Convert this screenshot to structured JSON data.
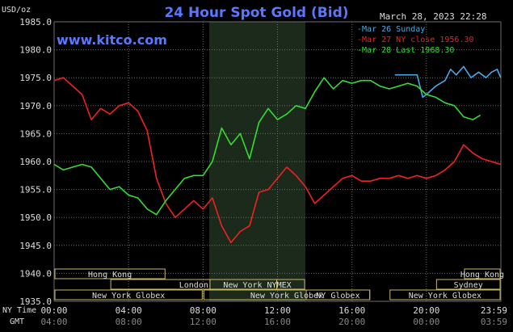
{
  "header": {
    "title": "24 Hour Spot Gold (Bid)",
    "site": "www.kitco.com",
    "unit": "USD/oz",
    "date": "March 28, 2023 22:28"
  },
  "colors": {
    "background": "#000000",
    "grid": "#6e6e6e",
    "shade": "#1c2a1c",
    "sunday": "#4aa8e8",
    "ny_close": "#ee2222",
    "last": "#33dd33",
    "title": "#5a78ff",
    "session_border": "#c8b860",
    "text": "#dddddd"
  },
  "legend": [
    {
      "label": "Mar 26 Sunday",
      "color": "#4aa8e8"
    },
    {
      "label": "Mar 27 NY close 1956.30",
      "color": "#ee2222"
    },
    {
      "label": "Mar 28 Last 1968.30",
      "color": "#33dd33"
    }
  ],
  "sessions": [
    {
      "label": "Hong Kong",
      "start": 0,
      "end": 6
    },
    {
      "label": "London",
      "start": 3,
      "end": 12
    },
    {
      "label": "New York NYMEX",
      "start": 8.33,
      "end": 13.5
    },
    {
      "label": "New York Globex",
      "start": 0,
      "end": 8
    },
    {
      "label": "New York Globex",
      "start": 8,
      "end": 17
    },
    {
      "label": "NY Globex",
      "start": 13.5,
      "end": 17
    },
    {
      "label": "Hong Kong",
      "start": 22,
      "end": 24
    },
    {
      "label": "Sydney",
      "start": 20.5,
      "end": 24
    },
    {
      "label": "New York Globex",
      "start": 18,
      "end": 24
    }
  ],
  "time_axis": {
    "ny_label": "NY Time",
    "gmt_label": "GMT",
    "ny_ticks": [
      "00:00",
      "04:00",
      "08:00",
      "12:00",
      "16:00",
      "20:00",
      "23:59"
    ],
    "gmt_ticks": [
      "04:00",
      "08:00",
      "12:00",
      "16:00",
      "20:00",
      "00:00",
      "03:59"
    ]
  },
  "chart_data": {
    "type": "line",
    "title": "24 Hour Spot Gold (Bid)",
    "ylabel": "USD/oz",
    "ylim": [
      1935.0,
      1985.0
    ],
    "yticks": [
      1935.0,
      1940.0,
      1945.0,
      1950.0,
      1955.0,
      1960.0,
      1965.0,
      1970.0,
      1975.0,
      1980.0,
      1985.0
    ],
    "ytick_labels": [
      "1935.0",
      "1940.0",
      "1945.0",
      "1950.0",
      "1955.0",
      "1960.0",
      "1965.0",
      "1970.0",
      "1975.0",
      "1980.0",
      "1985.0"
    ],
    "xlim": [
      0,
      24
    ],
    "grid": true,
    "shaded_hours": [
      8.33,
      13.5
    ],
    "legend_position": "top-right",
    "series": [
      {
        "name": "Mar 26 Sunday",
        "color": "#4aa8e8",
        "x": [
          18.3,
          19.0,
          19.5,
          19.8,
          20.0,
          20.5,
          21.0,
          21.3,
          21.6,
          22.0,
          22.4,
          22.8,
          23.2,
          23.5,
          23.8,
          23.99
        ],
        "y": [
          1975.5,
          1975.5,
          1975.5,
          1971.5,
          1972.0,
          1973.5,
          1974.5,
          1976.5,
          1975.5,
          1977.0,
          1975.0,
          1976.0,
          1975.0,
          1976.0,
          1976.5,
          1975.0
        ]
      },
      {
        "name": "Mar 27 NY close 1956.30",
        "color": "#ee2222",
        "x": [
          0,
          0.5,
          1.0,
          1.5,
          2.0,
          2.5,
          3.0,
          3.5,
          4.0,
          4.5,
          5.0,
          5.5,
          6.0,
          6.5,
          7.0,
          7.5,
          8.0,
          8.5,
          9.0,
          9.5,
          10.0,
          10.5,
          11.0,
          11.5,
          12.0,
          12.5,
          13.0,
          13.5,
          14.0,
          14.5,
          15.0,
          15.5,
          16.0,
          16.5,
          17.0,
          17.5,
          18.0,
          18.5,
          19.0,
          19.5,
          20.0,
          20.5,
          21.0,
          21.5,
          22.0,
          22.5,
          23.0,
          23.5,
          23.99
        ],
        "y": [
          1974.5,
          1975.0,
          1973.5,
          1972.0,
          1967.5,
          1969.5,
          1968.5,
          1970.0,
          1970.5,
          1969.0,
          1965.5,
          1957.0,
          1952.5,
          1950.0,
          1951.5,
          1953.0,
          1951.5,
          1953.5,
          1948.5,
          1945.5,
          1947.5,
          1948.5,
          1954.5,
          1955.0,
          1957.0,
          1959.0,
          1957.5,
          1955.5,
          1952.5,
          1954.0,
          1955.5,
          1957.0,
          1957.5,
          1956.5,
          1956.5,
          1957.0,
          1957.0,
          1957.5,
          1957.0,
          1957.5,
          1957.0,
          1957.5,
          1958.5,
          1960.0,
          1963.0,
          1961.5,
          1960.5,
          1960.0,
          1959.5
        ]
      },
      {
        "name": "Mar 28 Last 1968.30",
        "color": "#33dd33",
        "x": [
          0,
          0.5,
          1.0,
          1.5,
          2.0,
          2.5,
          3.0,
          3.5,
          4.0,
          4.5,
          5.0,
          5.5,
          6.0,
          6.5,
          7.0,
          7.5,
          8.0,
          8.5,
          9.0,
          9.5,
          10.0,
          10.5,
          11.0,
          11.5,
          12.0,
          12.5,
          13.0,
          13.5,
          14.0,
          14.5,
          15.0,
          15.5,
          16.0,
          16.5,
          17.0,
          17.5,
          18.0,
          18.5,
          19.0,
          19.5,
          20.0,
          20.5,
          21.0,
          21.5,
          22.0,
          22.5,
          22.9
        ],
        "y": [
          1959.5,
          1958.5,
          1959.0,
          1959.5,
          1959.0,
          1957.0,
          1955.0,
          1955.5,
          1954.0,
          1953.5,
          1951.5,
          1950.5,
          1953.0,
          1955.0,
          1957.0,
          1957.5,
          1957.5,
          1960.0,
          1966.0,
          1963.0,
          1965.0,
          1960.5,
          1967.0,
          1969.5,
          1967.5,
          1968.5,
          1970.0,
          1969.5,
          1972.5,
          1975.0,
          1973.0,
          1974.5,
          1974.0,
          1974.5,
          1974.5,
          1973.5,
          1973.0,
          1973.5,
          1974.0,
          1973.5,
          1972.0,
          1971.5,
          1970.5,
          1970.0,
          1968.0,
          1967.5,
          1968.3
        ]
      }
    ]
  }
}
